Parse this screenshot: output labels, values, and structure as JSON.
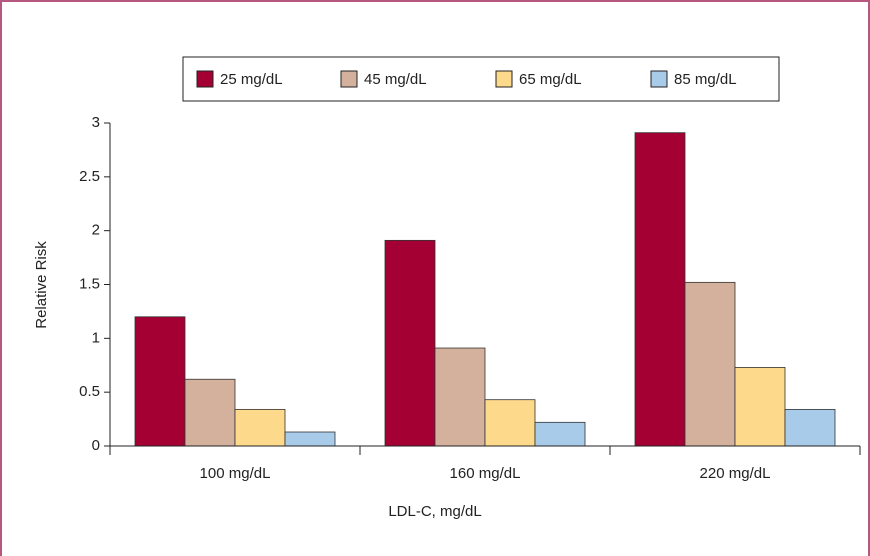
{
  "chart_data": {
    "type": "bar",
    "categories": [
      "100 mg/dL",
      "160 mg/dL",
      "220 mg/dL"
    ],
    "series": [
      {
        "name": "25 mg/dL",
        "color": "#a50034",
        "values": [
          1.2,
          1.91,
          2.91
        ]
      },
      {
        "name": "45 mg/dL",
        "color": "#d4b19c",
        "values": [
          0.62,
          0.91,
          1.52
        ]
      },
      {
        "name": "65 mg/dL",
        "color": "#fdd98b",
        "values": [
          0.34,
          0.43,
          0.73
        ]
      },
      {
        "name": "85 mg/dL",
        "color": "#a9cbea",
        "values": [
          0.13,
          0.22,
          0.34
        ]
      }
    ],
    "xlabel": "LDL-C, mg/dL",
    "ylabel": "Relative Risk",
    "ylim": [
      0,
      3
    ],
    "yticks": [
      0,
      0.5,
      1,
      1.5,
      2,
      2.5,
      3
    ],
    "legend": "top"
  }
}
